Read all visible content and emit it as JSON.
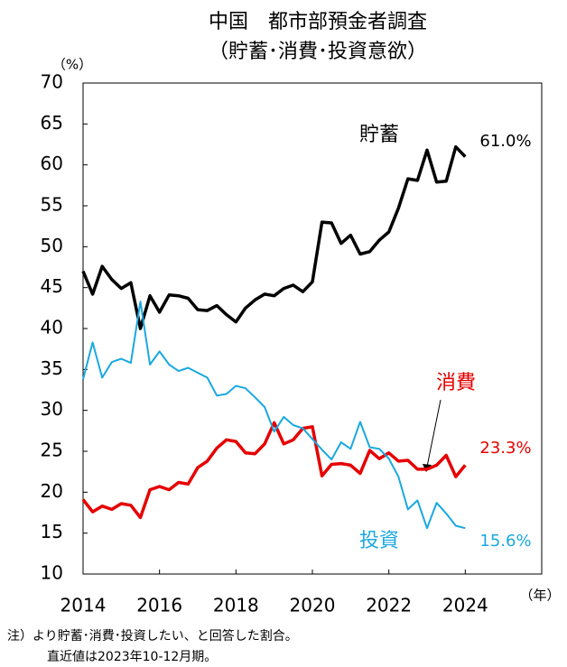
{
  "chart_data": {
    "type": "line",
    "title": "中国　都市部預金者調査",
    "subtitle": "（貯蓄･消費･投資意欲）",
    "y_label": "（%）",
    "x_label": "（年）",
    "notes": [
      "注）より貯蓄･消費･投資したい、と回答した割合。",
      "直近値は2023年10-12月期。"
    ],
    "x": [
      2014,
      2014.25,
      2014.5,
      2014.75,
      2015,
      2015.25,
      2015.5,
      2015.75,
      2016,
      2016.25,
      2016.5,
      2016.75,
      2017,
      2017.25,
      2017.5,
      2017.75,
      2018,
      2018.25,
      2018.5,
      2018.75,
      2019,
      2019.25,
      2019.5,
      2019.75,
      2020,
      2020.25,
      2020.5,
      2020.75,
      2021,
      2021.25,
      2021.5,
      2021.75,
      2022,
      2022.25,
      2022.5,
      2022.75,
      2023,
      2023.25,
      2023.5,
      2023.75,
      2024
    ],
    "series": [
      {
        "name": "貯蓄",
        "color": "#000000",
        "values": [
          47,
          44.2,
          47.6,
          46,
          44.9,
          45.6,
          40,
          44,
          42,
          44.1,
          44,
          43.7,
          42.3,
          42.2,
          42.8,
          41.7,
          40.8,
          42.5,
          43.5,
          44.2,
          44,
          44.9,
          45.3,
          44.5,
          45.7,
          53,
          52.9,
          50.4,
          51.4,
          49.1,
          49.4,
          50.8,
          51.8,
          54.7,
          58.3,
          58.1,
          61.8,
          57.9,
          58,
          62.2,
          61.0
        ],
        "value_labels": [
          null,
          null,
          null,
          null,
          null,
          null,
          null,
          null,
          null,
          null,
          null,
          null,
          null,
          null,
          null,
          null,
          null,
          null,
          null,
          null,
          null,
          null,
          null,
          null,
          null,
          null,
          null,
          null,
          null,
          null,
          null,
          null,
          null,
          null,
          null,
          null,
          null,
          null,
          null,
          null,
          "61.0%"
        ]
      },
      {
        "name": "消費",
        "color": "#e60000",
        "values": [
          19.1,
          17.6,
          18.3,
          17.9,
          18.6,
          18.4,
          16.9,
          20.3,
          20.7,
          20.3,
          21.2,
          21.0,
          23.0,
          23.8,
          25.4,
          26.4,
          26.2,
          24.8,
          24.7,
          25.9,
          28.5,
          25.9,
          26.4,
          27.8,
          28.0,
          22.0,
          23.4,
          23.5,
          23.3,
          22.3,
          25.1,
          24.1,
          24.8,
          23.8,
          23.9,
          22.8,
          22.8,
          23.3,
          24.5,
          21.9,
          23.3
        ],
        "value_labels": [
          null,
          null,
          null,
          null,
          null,
          null,
          null,
          null,
          null,
          null,
          null,
          null,
          null,
          null,
          null,
          null,
          null,
          null,
          null,
          null,
          null,
          null,
          null,
          null,
          null,
          null,
          null,
          null,
          null,
          null,
          null,
          null,
          null,
          null,
          null,
          null,
          null,
          null,
          null,
          null,
          "23.3%"
        ]
      },
      {
        "name": "投資",
        "color": "#1aa8e0",
        "values": [
          33.8,
          38.3,
          34.0,
          35.9,
          36.3,
          35.8,
          43.3,
          35.6,
          37.2,
          35.6,
          34.8,
          35.2,
          34.6,
          34.0,
          31.8,
          32.0,
          33.0,
          32.7,
          31.6,
          30.4,
          27.4,
          29.2,
          28.2,
          27.8,
          26.5,
          25.2,
          24.0,
          26.1,
          25.3,
          28.6,
          25.5,
          25.3,
          24.1,
          21.9,
          17.9,
          19.0,
          15.6,
          18.7,
          17.4,
          15.9,
          15.6
        ],
        "value_labels": [
          null,
          null,
          null,
          null,
          null,
          null,
          null,
          null,
          null,
          null,
          null,
          null,
          null,
          null,
          null,
          null,
          null,
          null,
          null,
          null,
          null,
          null,
          null,
          null,
          null,
          null,
          null,
          null,
          null,
          null,
          null,
          null,
          null,
          null,
          null,
          null,
          null,
          null,
          null,
          null,
          "15.6%"
        ]
      }
    ],
    "xlim": [
      2014,
      2026
    ],
    "xticks": [
      2014,
      2016,
      2018,
      2020,
      2022,
      2024
    ],
    "ylim": [
      10,
      70
    ],
    "yticks": [
      10,
      15,
      20,
      25,
      30,
      35,
      40,
      45,
      50,
      55,
      60,
      65,
      70
    ],
    "grid": false
  }
}
